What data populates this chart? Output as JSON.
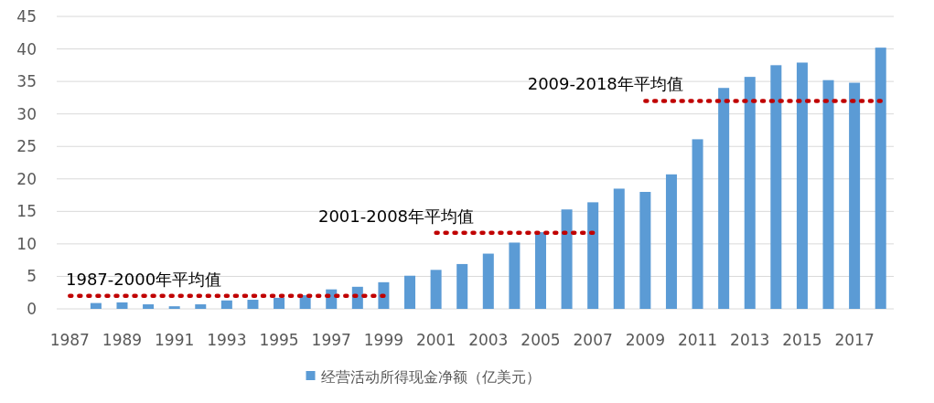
{
  "chart_data": {
    "type": "bar",
    "categories": [
      "1987",
      null,
      "1989",
      null,
      "1991",
      null,
      "1993",
      null,
      "1995",
      null,
      "1997",
      null,
      "1999",
      null,
      "2001",
      null,
      "2003",
      null,
      "2005",
      null,
      "2007",
      null,
      "2009",
      null,
      "2011",
      null,
      "2013",
      null,
      "2015",
      null,
      "2017",
      null
    ],
    "series": [
      {
        "name": "经营活动所得现金净额（亿美元）",
        "color": "#5b9bd5",
        "values": [
          null,
          0.9,
          1.0,
          0.7,
          0.4,
          0.7,
          1.3,
          1.4,
          1.7,
          2.1,
          3.0,
          3.4,
          4.1,
          5.1,
          6.0,
          6.9,
          8.5,
          10.2,
          11.8,
          15.3,
          16.4,
          18.5,
          18.0,
          20.7,
          26.1,
          34.0,
          35.7,
          37.5,
          37.9,
          35.2,
          34.8,
          40.2
        ]
      },
      {
        "name": "1987-2000年平均值",
        "type": "line",
        "color": "#c00000",
        "line_style": "dotted",
        "values": [
          2.0,
          2.0,
          2.0,
          2.0,
          2.0,
          2.0,
          2.0,
          2.0,
          2.0,
          2.0,
          2.0,
          2.0,
          2.0,
          null,
          null,
          null,
          null,
          null,
          null,
          null,
          null,
          null,
          null,
          null,
          null,
          null,
          null,
          null,
          null,
          null,
          null,
          null
        ]
      },
      {
        "name": "2001-2008年平均值",
        "type": "line",
        "color": "#c00000",
        "line_style": "dotted",
        "values": [
          null,
          null,
          null,
          null,
          null,
          null,
          null,
          null,
          null,
          null,
          null,
          null,
          null,
          null,
          11.7,
          11.7,
          11.7,
          11.7,
          11.7,
          11.7,
          11.7,
          null,
          null,
          null,
          null,
          null,
          null,
          null,
          null,
          null,
          null,
          null
        ]
      },
      {
        "name": "2009-2018年平均值",
        "type": "line",
        "color": "#c00000",
        "line_style": "dotted",
        "values": [
          null,
          null,
          null,
          null,
          null,
          null,
          null,
          null,
          null,
          null,
          null,
          null,
          null,
          null,
          null,
          null,
          null,
          null,
          null,
          null,
          null,
          null,
          32,
          32,
          32,
          32,
          32,
          32,
          32,
          32,
          32,
          32
        ]
      }
    ],
    "ylim": [
      0,
      45
    ],
    "yticks": [
      0,
      5,
      10,
      15,
      20,
      25,
      30,
      35,
      40,
      45
    ],
    "grid": "y",
    "legend": "bottom"
  }
}
